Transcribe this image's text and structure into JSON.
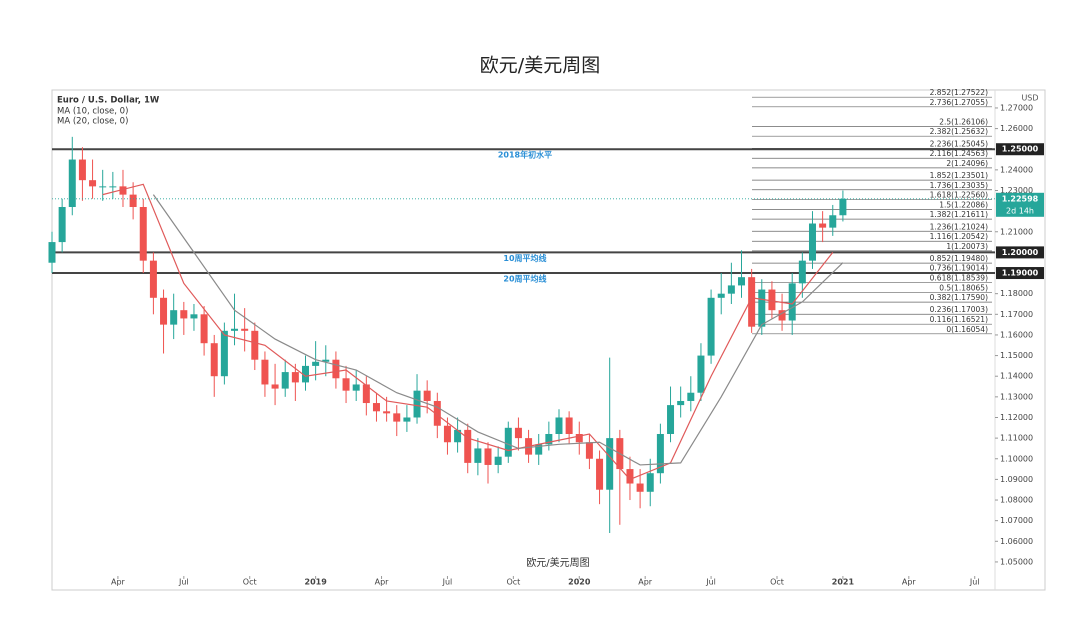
{
  "chart_data": {
    "type": "candlestick",
    "title": "欧元/美元周图",
    "symbol": "Euro / U.S. Dollar, 1W",
    "currency": "USD",
    "watermark": "欧元/美元周图",
    "up_color": "#26a69a",
    "down_color": "#ef5350",
    "xlim": [
      0,
      186
    ],
    "xticks": [
      {
        "value": 13,
        "label": "Apr"
      },
      {
        "value": 26,
        "label": "Jul"
      },
      {
        "value": 39,
        "label": "Oct"
      },
      {
        "value": 52,
        "label": "2019"
      },
      {
        "value": 65,
        "label": "Apr"
      },
      {
        "value": 78,
        "label": "Jul"
      },
      {
        "value": 91,
        "label": "Oct"
      },
      {
        "value": 104,
        "label": "2020"
      },
      {
        "value": 117,
        "label": "Apr"
      },
      {
        "value": 130,
        "label": "Jul"
      },
      {
        "value": 143,
        "label": "Oct"
      },
      {
        "value": 156,
        "label": "2021"
      },
      {
        "value": 169,
        "label": "Apr"
      },
      {
        "value": 182,
        "label": "Jul"
      }
    ],
    "ylim": [
      1.0364,
      1.2787
    ],
    "yticks": [
      {
        "value": 1.05,
        "label": "1.05000"
      },
      {
        "value": 1.06,
        "label": "1.06000"
      },
      {
        "value": 1.07,
        "label": "1.07000"
      },
      {
        "value": 1.08,
        "label": "1.08000"
      },
      {
        "value": 1.09,
        "label": "1.09000"
      },
      {
        "value": 1.1,
        "label": "1.10000"
      },
      {
        "value": 1.11,
        "label": "1.11000"
      },
      {
        "value": 1.12,
        "label": "1.12000"
      },
      {
        "value": 1.13,
        "label": "1.13000"
      },
      {
        "value": 1.14,
        "label": "1.14000"
      },
      {
        "value": 1.15,
        "label": "1.15000"
      },
      {
        "value": 1.16,
        "label": "1.16000"
      },
      {
        "value": 1.17,
        "label": "1.17000"
      },
      {
        "value": 1.18,
        "label": "1.18000"
      },
      {
        "value": 1.21,
        "label": "1.21000"
      },
      {
        "value": 1.23,
        "label": "1.23000"
      },
      {
        "value": 1.24,
        "label": "1.24000"
      },
      {
        "value": 1.26,
        "label": "1.26000"
      },
      {
        "value": 1.27,
        "label": "1.27000"
      }
    ],
    "x": [
      0,
      2,
      4,
      6,
      8,
      10,
      12,
      14,
      16,
      18,
      20,
      22,
      24,
      26,
      28,
      30,
      32,
      34,
      36,
      38,
      40,
      42,
      44,
      46,
      48,
      50,
      52,
      54,
      56,
      58,
      60,
      62,
      64,
      66,
      68,
      70,
      72,
      74,
      76,
      78,
      80,
      82,
      84,
      86,
      88,
      90,
      92,
      94,
      96,
      98,
      100,
      102,
      104,
      106,
      108,
      110,
      112,
      114,
      116,
      118,
      120,
      122,
      124,
      126,
      128,
      130,
      132,
      134,
      136,
      138,
      140,
      142,
      144,
      146,
      148,
      150,
      152,
      154,
      156
    ],
    "open": [
      1.195,
      1.205,
      1.222,
      1.245,
      1.235,
      1.232,
      1.232,
      1.232,
      1.228,
      1.222,
      1.196,
      1.178,
      1.165,
      1.172,
      1.168,
      1.17,
      1.156,
      1.14,
      1.162,
      1.163,
      1.162,
      1.148,
      1.136,
      1.134,
      1.142,
      1.137,
      1.145,
      1.147,
      1.148,
      1.139,
      1.133,
      1.136,
      1.127,
      1.123,
      1.122,
      1.118,
      1.12,
      1.133,
      1.128,
      1.116,
      1.108,
      1.114,
      1.098,
      1.105,
      1.097,
      1.101,
      1.115,
      1.11,
      1.102,
      1.107,
      1.112,
      1.12,
      1.112,
      1.108,
      1.1,
      1.085,
      1.11,
      1.095,
      1.088,
      1.084,
      1.093,
      1.112,
      1.126,
      1.128,
      1.132,
      1.15,
      1.178,
      1.18,
      1.184,
      1.188,
      1.164,
      1.182,
      1.172,
      1.167,
      1.185,
      1.196,
      1.214,
      1.212,
      1.218
    ],
    "high": [
      1.21,
      1.226,
      1.256,
      1.251,
      1.245,
      1.24,
      1.239,
      1.24,
      1.234,
      1.226,
      1.2,
      1.182,
      1.18,
      1.176,
      1.175,
      1.174,
      1.16,
      1.166,
      1.18,
      1.173,
      1.166,
      1.152,
      1.146,
      1.148,
      1.146,
      1.15,
      1.157,
      1.155,
      1.152,
      1.145,
      1.143,
      1.14,
      1.132,
      1.13,
      1.126,
      1.126,
      1.141,
      1.138,
      1.132,
      1.12,
      1.12,
      1.117,
      1.11,
      1.108,
      1.106,
      1.118,
      1.12,
      1.114,
      1.112,
      1.118,
      1.124,
      1.123,
      1.118,
      1.112,
      1.104,
      1.149,
      1.114,
      1.101,
      1.095,
      1.1,
      1.117,
      1.135,
      1.135,
      1.14,
      1.156,
      1.182,
      1.19,
      1.195,
      1.201,
      1.192,
      1.187,
      1.186,
      1.18,
      1.19,
      1.2,
      1.22,
      1.22,
      1.223,
      1.23
    ],
    "low": [
      1.19,
      1.2,
      1.218,
      1.225,
      1.226,
      1.225,
      1.226,
      1.222,
      1.216,
      1.19,
      1.17,
      1.151,
      1.158,
      1.16,
      1.162,
      1.15,
      1.13,
      1.136,
      1.155,
      1.152,
      1.143,
      1.13,
      1.126,
      1.13,
      1.128,
      1.133,
      1.138,
      1.14,
      1.134,
      1.127,
      1.128,
      1.121,
      1.118,
      1.118,
      1.111,
      1.113,
      1.117,
      1.122,
      1.11,
      1.102,
      1.103,
      1.093,
      1.092,
      1.088,
      1.093,
      1.098,
      1.104,
      1.098,
      1.097,
      1.104,
      1.108,
      1.107,
      1.102,
      1.095,
      1.078,
      1.064,
      1.068,
      1.08,
      1.076,
      1.077,
      1.088,
      1.108,
      1.12,
      1.123,
      1.128,
      1.146,
      1.17,
      1.175,
      1.178,
      1.161,
      1.16,
      1.168,
      1.162,
      1.16,
      1.178,
      1.192,
      1.205,
      1.208,
      1.215
    ],
    "close": [
      1.205,
      1.222,
      1.245,
      1.235,
      1.232,
      1.232,
      1.232,
      1.228,
      1.222,
      1.196,
      1.178,
      1.165,
      1.172,
      1.168,
      1.17,
      1.156,
      1.14,
      1.162,
      1.163,
      1.162,
      1.148,
      1.136,
      1.134,
      1.142,
      1.137,
      1.145,
      1.147,
      1.148,
      1.139,
      1.133,
      1.136,
      1.127,
      1.123,
      1.122,
      1.118,
      1.12,
      1.133,
      1.128,
      1.116,
      1.108,
      1.114,
      1.098,
      1.105,
      1.097,
      1.101,
      1.115,
      1.11,
      1.102,
      1.107,
      1.112,
      1.12,
      1.112,
      1.108,
      1.1,
      1.085,
      1.11,
      1.095,
      1.088,
      1.084,
      1.093,
      1.112,
      1.126,
      1.128,
      1.132,
      1.15,
      1.178,
      1.18,
      1.184,
      1.188,
      1.164,
      1.182,
      1.172,
      1.167,
      1.185,
      1.196,
      1.214,
      1.212,
      1.218,
      1.226
    ],
    "series": [
      {
        "name": "MA (10, close, 0)",
        "color": "#e05a5a",
        "x": [
          10,
          18,
          26,
          34,
          42,
          50,
          58,
          66,
          74,
          82,
          90,
          98,
          106,
          114,
          122,
          130,
          138,
          146,
          154
        ],
        "values": [
          1.228,
          1.233,
          1.185,
          1.16,
          1.155,
          1.14,
          1.143,
          1.128,
          1.125,
          1.11,
          1.104,
          1.108,
          1.112,
          1.09,
          1.098,
          1.14,
          1.178,
          1.175,
          1.2
        ]
      },
      {
        "name": "MA (20, close, 0)",
        "color": "#8a8a8a",
        "x": [
          20,
          28,
          36,
          44,
          52,
          60,
          68,
          76,
          84,
          92,
          100,
          108,
          116,
          124,
          132,
          140,
          148,
          156
        ],
        "values": [
          1.228,
          1.2,
          1.172,
          1.158,
          1.148,
          1.143,
          1.132,
          1.125,
          1.113,
          1.105,
          1.107,
          1.108,
          1.097,
          1.098,
          1.13,
          1.165,
          1.176,
          1.195
        ]
      }
    ],
    "levels": [
      {
        "value": 1.25,
        "label": "1.25000",
        "text": "2018年初水平"
      },
      {
        "value": 1.2,
        "label": "1.20000",
        "text": "10周平均线"
      },
      {
        "value": 1.19,
        "label": "1.19000",
        "text": "20周平均线"
      }
    ],
    "fib_levels": [
      {
        "value": 1.27522,
        "label": "2.852(1.27522)"
      },
      {
        "value": 1.27055,
        "label": "2.736(1.27055)"
      },
      {
        "value": 1.26106,
        "label": "2.5(1.26106)"
      },
      {
        "value": 1.25632,
        "label": "2.382(1.25632)"
      },
      {
        "value": 1.25045,
        "label": "2.236(1.25045)"
      },
      {
        "value": 1.24563,
        "label": "2.116(1.24563)"
      },
      {
        "value": 1.24096,
        "label": "2(1.24096)"
      },
      {
        "value": 1.23501,
        "label": "1.852(1.23501)"
      },
      {
        "value": 1.23035,
        "label": "1.736(1.23035)"
      },
      {
        "value": 1.2256,
        "label": "1.618(1.22560)"
      },
      {
        "value": 1.22086,
        "label": "1.5(1.22086)"
      },
      {
        "value": 1.21611,
        "label": "1.382(1.21611)"
      },
      {
        "value": 1.21024,
        "label": "1.236(1.21024)"
      },
      {
        "value": 1.20542,
        "label": "1.116(1.20542)"
      },
      {
        "value": 1.20073,
        "label": "1(1.20073)"
      },
      {
        "value": 1.1948,
        "label": "0.852(1.19480)"
      },
      {
        "value": 1.19014,
        "label": "0.736(1.19014)"
      },
      {
        "value": 1.18539,
        "label": "0.618(1.18539)"
      },
      {
        "value": 1.18065,
        "label": "0.5(1.18065)"
      },
      {
        "value": 1.1759,
        "label": "0.382(1.17590)"
      },
      {
        "value": 1.17003,
        "label": "0.236(1.17003)"
      },
      {
        "value": 1.16521,
        "label": "0.116(1.16521)"
      },
      {
        "value": 1.16054,
        "label": "0(1.16054)"
      }
    ],
    "last_price": 1.22598,
    "countdown": "2d 14h"
  }
}
